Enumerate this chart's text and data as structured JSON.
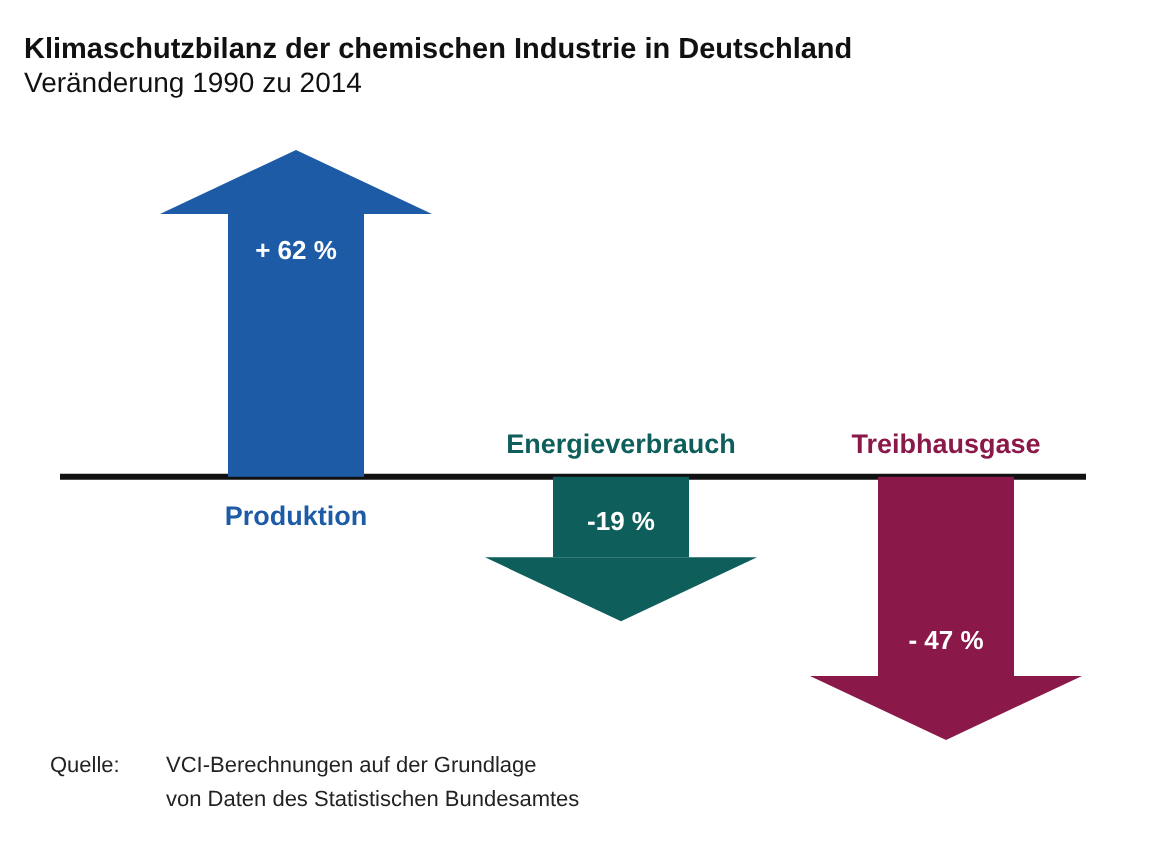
{
  "chart_data": {
    "type": "bar",
    "title": "Klimaschutzbilanz der chemischen Industrie in Deutschland",
    "subtitle": "Veränderung 1990 zu 2014",
    "categories": [
      "Produktion",
      "Energieverbrauch",
      "Treibhausgase"
    ],
    "values": [
      62,
      -19,
      -47
    ],
    "colors": [
      "#1d5ba6",
      "#0e5e5c",
      "#8a1848"
    ],
    "value_labels": [
      "+ 62 %",
      "-19 %",
      "- 47 %"
    ],
    "annotations": [
      "Quelle:",
      "VCI-Berechnungen auf der Grundlage\nvon Daten des Statistischen Bundesamtes"
    ]
  }
}
